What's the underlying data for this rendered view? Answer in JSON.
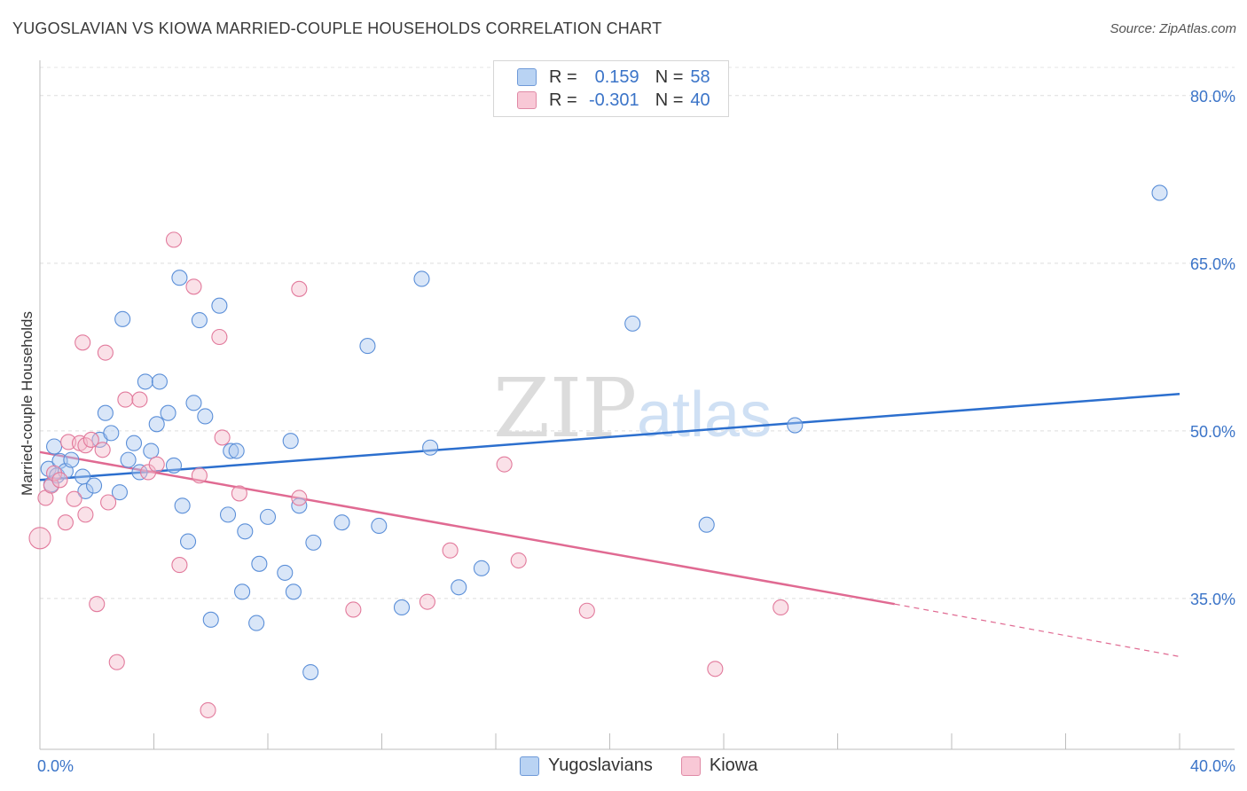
{
  "title": "YUGOSLAVIAN VS KIOWA MARRIED-COUPLE HOUSEHOLDS CORRELATION CHART",
  "source": "Source: ZipAtlas.com",
  "watermark": {
    "zip": "ZIP",
    "atlas": "atlas"
  },
  "legend": {
    "r_label": "R =",
    "n_label": "N =",
    "series": [
      {
        "r": "0.159",
        "n": "58"
      },
      {
        "r": "-0.301",
        "n": "40"
      }
    ]
  },
  "bottom_legend": [
    "Yugoslavians",
    "Kiowa"
  ],
  "chart_data": {
    "type": "scatter",
    "title": "YUGOSLAVIAN VS KIOWA MARRIED-COUPLE HOUSEHOLDS CORRELATION CHART",
    "xlabel": "",
    "ylabel": "Married-couple Households",
    "xlim": [
      0,
      40
    ],
    "ylim": [
      21.5,
      83
    ],
    "x_tick_labels": [
      "0.0%",
      "40.0%"
    ],
    "y_ticks": [
      35,
      50,
      65,
      80
    ],
    "y_tick_labels": [
      "35.0%",
      "50.0%",
      "65.0%",
      "80.0%"
    ],
    "series": [
      {
        "name": "Yugoslavians",
        "color": "#5b8fd8",
        "fill": "#aac8f0",
        "points": [
          [
            0.3,
            46.6
          ],
          [
            0.4,
            45.2
          ],
          [
            0.5,
            48.6
          ],
          [
            0.6,
            46.0
          ],
          [
            0.7,
            47.3
          ],
          [
            0.9,
            46.4
          ],
          [
            1.1,
            47.4
          ],
          [
            1.5,
            45.9
          ],
          [
            1.6,
            44.6
          ],
          [
            1.9,
            45.1
          ],
          [
            2.1,
            49.2
          ],
          [
            2.3,
            51.6
          ],
          [
            2.5,
            49.8
          ],
          [
            2.8,
            44.5
          ],
          [
            2.9,
            60.0
          ],
          [
            3.1,
            47.4
          ],
          [
            3.3,
            48.9
          ],
          [
            3.5,
            46.3
          ],
          [
            3.7,
            54.4
          ],
          [
            3.9,
            48.2
          ],
          [
            4.1,
            50.6
          ],
          [
            4.2,
            54.4
          ],
          [
            4.5,
            51.6
          ],
          [
            4.7,
            46.9
          ],
          [
            4.9,
            63.7
          ],
          [
            5.0,
            43.3
          ],
          [
            5.2,
            40.1
          ],
          [
            5.4,
            52.5
          ],
          [
            5.6,
            59.9
          ],
          [
            5.8,
            51.3
          ],
          [
            6.0,
            33.1
          ],
          [
            6.3,
            61.2
          ],
          [
            6.6,
            42.5
          ],
          [
            6.7,
            48.2
          ],
          [
            6.9,
            48.2
          ],
          [
            7.1,
            35.6
          ],
          [
            7.2,
            41.0
          ],
          [
            7.6,
            32.8
          ],
          [
            7.7,
            38.1
          ],
          [
            8.0,
            42.3
          ],
          [
            8.6,
            37.3
          ],
          [
            8.8,
            49.1
          ],
          [
            8.9,
            35.6
          ],
          [
            9.1,
            43.3
          ],
          [
            9.5,
            28.4
          ],
          [
            9.6,
            40.0
          ],
          [
            10.6,
            41.8
          ],
          [
            11.5,
            57.6
          ],
          [
            11.9,
            41.5
          ],
          [
            12.7,
            34.2
          ],
          [
            13.4,
            63.6
          ],
          [
            13.7,
            48.5
          ],
          [
            14.7,
            36.0
          ],
          [
            15.5,
            37.7
          ],
          [
            20.8,
            59.6
          ],
          [
            23.4,
            41.6
          ],
          [
            26.5,
            50.5
          ],
          [
            39.3,
            71.3
          ]
        ],
        "trend": {
          "x": [
            0,
            40
          ],
          "y": [
            45.6,
            53.3
          ]
        }
      },
      {
        "name": "Kiowa",
        "color": "#e27a9c",
        "fill": "#f5bccd",
        "points": [
          [
            0.0,
            40.4
          ],
          [
            0.2,
            44.0
          ],
          [
            0.4,
            45.1
          ],
          [
            0.5,
            46.2
          ],
          [
            0.7,
            45.6
          ],
          [
            0.9,
            41.8
          ],
          [
            1.0,
            49.0
          ],
          [
            1.2,
            43.9
          ],
          [
            1.4,
            48.9
          ],
          [
            1.5,
            57.9
          ],
          [
            1.6,
            48.7
          ],
          [
            1.6,
            42.5
          ],
          [
            1.8,
            49.2
          ],
          [
            2.0,
            34.5
          ],
          [
            2.2,
            48.3
          ],
          [
            2.3,
            57.0
          ],
          [
            2.4,
            43.6
          ],
          [
            2.7,
            29.3
          ],
          [
            3.0,
            52.8
          ],
          [
            3.5,
            52.8
          ],
          [
            3.8,
            46.3
          ],
          [
            4.1,
            47.0
          ],
          [
            4.7,
            67.1
          ],
          [
            4.9,
            38.0
          ],
          [
            5.4,
            62.9
          ],
          [
            5.6,
            46.0
          ],
          [
            5.9,
            25.0
          ],
          [
            6.3,
            58.4
          ],
          [
            6.4,
            49.4
          ],
          [
            7.0,
            44.4
          ],
          [
            9.1,
            62.7
          ],
          [
            9.1,
            44.0
          ],
          [
            11.0,
            34.0
          ],
          [
            13.6,
            34.7
          ],
          [
            14.4,
            39.3
          ],
          [
            16.3,
            47.0
          ],
          [
            16.8,
            38.4
          ],
          [
            19.2,
            33.9
          ],
          [
            23.7,
            28.7
          ],
          [
            26.0,
            34.2
          ]
        ],
        "trend": {
          "x": [
            0,
            30.0,
            40
          ],
          "y": [
            48.1,
            34.5,
            29.8
          ]
        }
      }
    ]
  }
}
